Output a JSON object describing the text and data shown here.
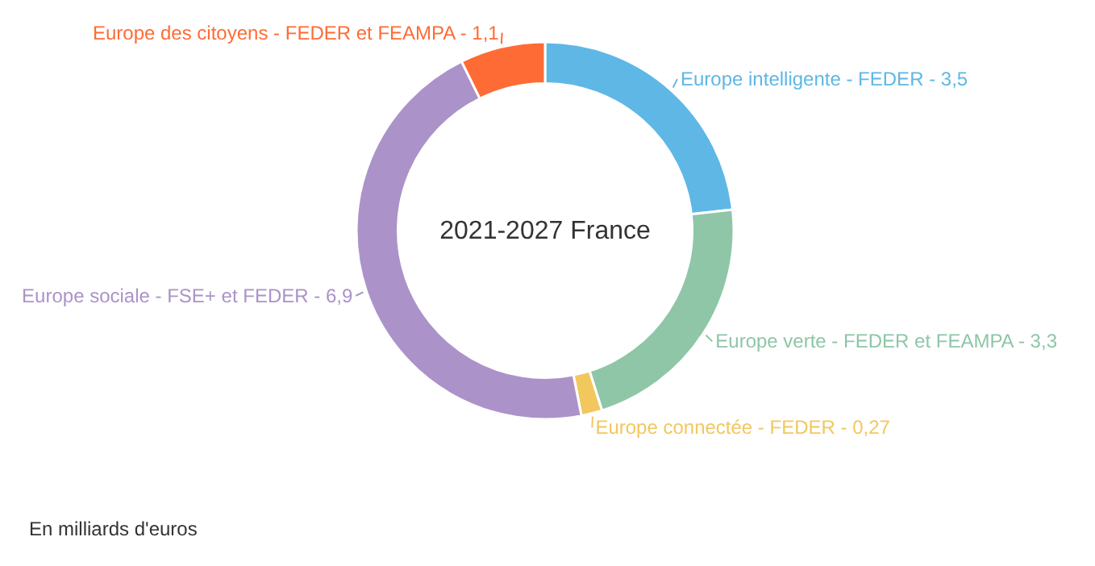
{
  "chart_data": {
    "type": "donut",
    "title": "2021-2027 France",
    "categories": [
      "Europe intelligente - FEDER",
      "Europe verte - FEDER et FEAMPA",
      "Europe connectée - FEDER",
      "Europe sociale - FSE+ et FEDER",
      "Europe des citoyens - FEDER et FEAMPA"
    ],
    "values": [
      3.5,
      3.3,
      0.27,
      6.9,
      1.1
    ],
    "value_labels": [
      "3,5",
      "3,3",
      "0,27",
      "6,9",
      "1,1"
    ],
    "colors": [
      "#5fb7e6",
      "#8fc6a7",
      "#f2c75e",
      "#ab93c9",
      "#ff6b35"
    ],
    "annotations": [
      "En milliards d'euros"
    ]
  }
}
